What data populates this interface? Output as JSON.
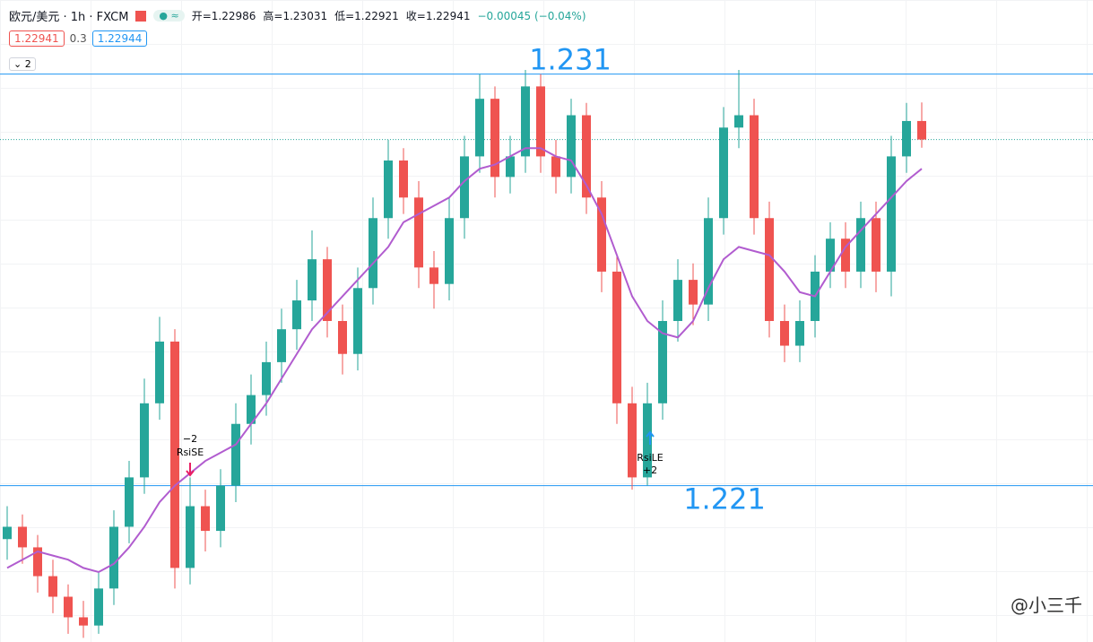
{
  "header": {
    "symbol": "欧元/美元 · 1h · FXCM",
    "ohlc": [
      "开=1.22986",
      "高=1.23031",
      "低=1.22921",
      "收=1.22941"
    ],
    "change": "−0.00045 (−0.04%)"
  },
  "price_boxes": [
    "1.22941",
    "0.3",
    "1.22944"
  ],
  "collapse": "2",
  "chart_data": {
    "type": "candlestick",
    "ylim": [
      1.2172,
      1.2328
    ],
    "up_color": "#26a69a",
    "down_color": "#ef5350",
    "candles": [
      [
        1.2197,
        1.2205,
        1.2192,
        1.22
      ],
      [
        1.22,
        1.2203,
        1.2191,
        1.2195
      ],
      [
        1.2195,
        1.2198,
        1.2184,
        1.2188
      ],
      [
        1.2188,
        1.2192,
        1.2179,
        1.2183
      ],
      [
        1.2183,
        1.2186,
        1.2174,
        1.2178
      ],
      [
        1.2178,
        1.2182,
        1.2173,
        1.2176
      ],
      [
        1.2176,
        1.2189,
        1.2174,
        1.2185
      ],
      [
        1.2185,
        1.2204,
        1.2181,
        1.22
      ],
      [
        1.22,
        1.2216,
        1.2196,
        1.2212
      ],
      [
        1.2212,
        1.2236,
        1.2208,
        1.223
      ],
      [
        1.223,
        1.2251,
        1.2226,
        1.2245
      ],
      [
        1.2245,
        1.2248,
        1.2185,
        1.219
      ],
      [
        1.219,
        1.2212,
        1.2186,
        1.2205
      ],
      [
        1.2205,
        1.2209,
        1.2194,
        1.2199
      ],
      [
        1.2199,
        1.2214,
        1.2195,
        1.221
      ],
      [
        1.221,
        1.223,
        1.2206,
        1.2225
      ],
      [
        1.2225,
        1.2237,
        1.222,
        1.2232
      ],
      [
        1.2232,
        1.2245,
        1.2227,
        1.224
      ],
      [
        1.224,
        1.2253,
        1.2235,
        1.2248
      ],
      [
        1.2248,
        1.226,
        1.2243,
        1.2255
      ],
      [
        1.2255,
        1.2272,
        1.225,
        1.2265
      ],
      [
        1.2265,
        1.2268,
        1.2246,
        1.225
      ],
      [
        1.225,
        1.2254,
        1.2237,
        1.2242
      ],
      [
        1.2242,
        1.2263,
        1.2238,
        1.2258
      ],
      [
        1.2258,
        1.228,
        1.2254,
        1.2275
      ],
      [
        1.2275,
        1.2294,
        1.227,
        1.2289
      ],
      [
        1.2289,
        1.2292,
        1.2276,
        1.228
      ],
      [
        1.228,
        1.2284,
        1.2258,
        1.2263
      ],
      [
        1.2263,
        1.2267,
        1.2253,
        1.2259
      ],
      [
        1.2259,
        1.228,
        1.2255,
        1.2275
      ],
      [
        1.2275,
        1.2295,
        1.227,
        1.229
      ],
      [
        1.229,
        1.231,
        1.2286,
        1.2304
      ],
      [
        1.2304,
        1.2307,
        1.228,
        1.2285
      ],
      [
        1.2285,
        1.2295,
        1.2281,
        1.229
      ],
      [
        1.229,
        1.2311,
        1.2286,
        1.2307
      ],
      [
        1.2307,
        1.231,
        1.2286,
        1.229
      ],
      [
        1.229,
        1.2294,
        1.2281,
        1.2285
      ],
      [
        1.2285,
        1.2304,
        1.2281,
        1.23
      ],
      [
        1.23,
        1.2303,
        1.2276,
        1.228
      ],
      [
        1.228,
        1.2284,
        1.2257,
        1.2262
      ],
      [
        1.2262,
        1.2266,
        1.2225,
        1.223
      ],
      [
        1.223,
        1.2234,
        1.2209,
        1.2212
      ],
      [
        1.2212,
        1.2235,
        1.221,
        1.223
      ],
      [
        1.223,
        1.2255,
        1.2226,
        1.225
      ],
      [
        1.225,
        1.2265,
        1.2245,
        1.226
      ],
      [
        1.226,
        1.2264,
        1.2249,
        1.2254
      ],
      [
        1.2254,
        1.228,
        1.225,
        1.2275
      ],
      [
        1.2275,
        1.2302,
        1.2271,
        1.2297
      ],
      [
        1.2297,
        1.2311,
        1.2292,
        1.23
      ],
      [
        1.23,
        1.2304,
        1.2271,
        1.2275
      ],
      [
        1.2275,
        1.2279,
        1.2246,
        1.225
      ],
      [
        1.225,
        1.2254,
        1.224,
        1.2244
      ],
      [
        1.2244,
        1.2255,
        1.224,
        1.225
      ],
      [
        1.225,
        1.2266,
        1.2246,
        1.2262
      ],
      [
        1.2262,
        1.2274,
        1.2258,
        1.227
      ],
      [
        1.227,
        1.2274,
        1.2258,
        1.2262
      ],
      [
        1.2262,
        1.2279,
        1.2258,
        1.2275
      ],
      [
        1.2275,
        1.2279,
        1.2257,
        1.2262
      ],
      [
        1.2262,
        1.2295,
        1.2256,
        1.229
      ],
      [
        1.229,
        1.2303,
        1.2286,
        1.22986
      ],
      [
        1.22986,
        1.23031,
        1.22921,
        1.22941
      ]
    ],
    "ma": {
      "color": "#b15ccf",
      "values": [
        1.219,
        1.2192,
        1.2194,
        1.2193,
        1.2192,
        1.219,
        1.2189,
        1.2191,
        1.2195,
        1.22,
        1.2206,
        1.221,
        1.2213,
        1.2216,
        1.2218,
        1.222,
        1.2225,
        1.223,
        1.2236,
        1.2242,
        1.2248,
        1.2252,
        1.2256,
        1.226,
        1.2264,
        1.2268,
        1.2274,
        1.2276,
        1.2278,
        1.228,
        1.2284,
        1.2287,
        1.2288,
        1.229,
        1.2292,
        1.2292,
        1.229,
        1.2289,
        1.2283,
        1.2276,
        1.2266,
        1.2256,
        1.225,
        1.2247,
        1.2246,
        1.225,
        1.2258,
        1.2265,
        1.2268,
        1.2267,
        1.2266,
        1.2262,
        1.2257,
        1.2256,
        1.2262,
        1.2268,
        1.2272,
        1.2276,
        1.228,
        1.2284,
        1.2287
      ]
    },
    "levels": [
      1.231,
      1.221
    ],
    "level_color": "#2196f3",
    "signals": [
      {
        "text": "RsiSE",
        "qty": "−2",
        "color": "#e91e63"
      },
      {
        "text": "RsiLE",
        "qty": "+2",
        "color": "#2196f3"
      }
    ]
  },
  "watermark": "@小三千"
}
